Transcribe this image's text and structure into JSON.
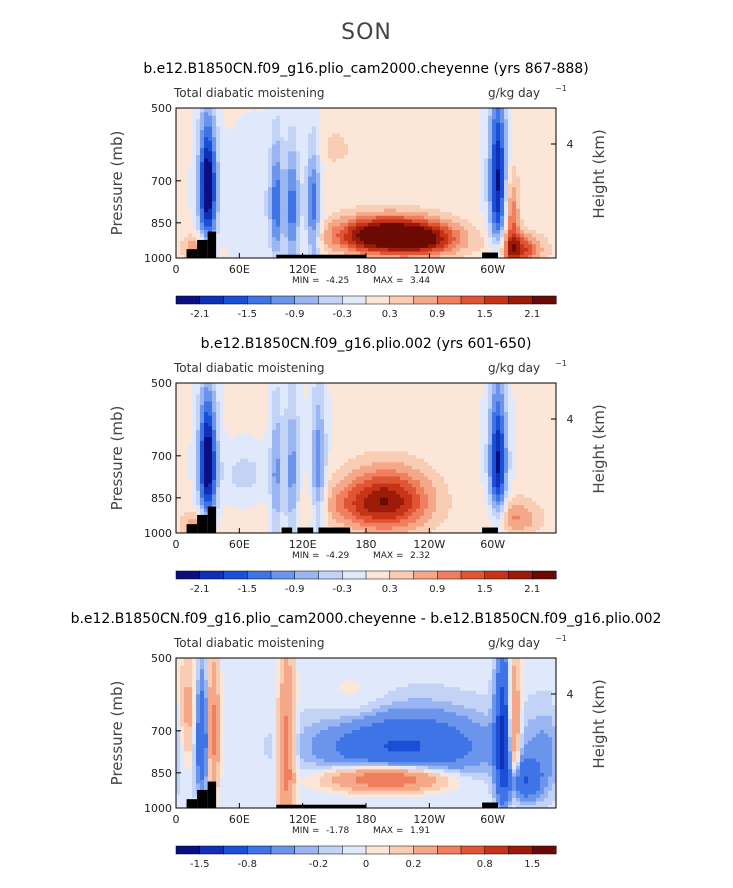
{
  "figure": {
    "suptitle": "SON"
  },
  "chart_data": [
    {
      "type": "heatmap",
      "title": "b.e12.B1850CN.f09_g16.plio_cam2000.cheyenne (yrs 867-888)",
      "left_label": "Total diabatic moistening",
      "units": "g/kg day",
      "units_exp": "−1",
      "ylabel": "Pressure (mb)",
      "ylabel_right": "Height (km)",
      "right_ticks": [
        "4"
      ],
      "yticks": [
        "500",
        "700",
        "850",
        "1000"
      ],
      "xticks": [
        "0",
        "60E",
        "120E",
        "180",
        "120W",
        "60W"
      ],
      "xlim": [
        0,
        360
      ],
      "ylim": [
        1000,
        500
      ],
      "min_label": "MIN =",
      "min_value": "-4.25",
      "max_label": "MAX =",
      "max_value": "3.44",
      "colorbar_ticks": [
        "-2.1",
        "-1.5",
        "-0.9",
        "-0.3",
        "0.3",
        "0.9",
        "1.5",
        "2.1"
      ],
      "levels": [
        -2.4,
        -2.1,
        -1.8,
        -1.5,
        -1.2,
        -0.9,
        -0.6,
        -0.3,
        0,
        0.3,
        0.6,
        0.9,
        1.2,
        1.5,
        1.8,
        2.1,
        2.4
      ],
      "features": [
        {
          "lon": 30,
          "p": 720,
          "wlon": 6,
          "wp": 150,
          "amp": -2.6
        },
        {
          "lon": 95,
          "p": 780,
          "wlon": 4,
          "wp": 160,
          "amp": -1.3
        },
        {
          "lon": 110,
          "p": 800,
          "wlon": 5,
          "wp": 160,
          "amp": -1.4
        },
        {
          "lon": 130,
          "p": 800,
          "wlon": 5,
          "wp": 170,
          "amp": -1.5
        },
        {
          "lon": 75,
          "p": 780,
          "wlon": 20,
          "wp": 140,
          "amp": -0.35
        },
        {
          "lon": 200,
          "p": 900,
          "wlon": 35,
          "wp": 55,
          "amp": 2.8
        },
        {
          "lon": 240,
          "p": 920,
          "wlon": 25,
          "wp": 50,
          "amp": 1.0
        },
        {
          "lon": 305,
          "p": 700,
          "wlon": 6,
          "wp": 200,
          "amp": -2.2
        },
        {
          "lon": 318,
          "p": 840,
          "wlon": 5,
          "wp": 120,
          "amp": 1.2
        },
        {
          "lon": 325,
          "p": 960,
          "wlon": 15,
          "wp": 50,
          "amp": 1.6
        },
        {
          "lon": 150,
          "p": 600,
          "wlon": 20,
          "wp": 60,
          "amp": 0.3
        },
        {
          "lon": 20,
          "p": 950,
          "wlon": 10,
          "wp": 40,
          "amp": 0.9
        }
      ],
      "topography": [
        {
          "lon0": 10,
          "lon1": 20,
          "p": 960
        },
        {
          "lon0": 20,
          "lon1": 30,
          "p": 920
        },
        {
          "lon0": 30,
          "lon1": 38,
          "p": 885
        },
        {
          "lon0": 95,
          "lon1": 180,
          "p": 985
        },
        {
          "lon0": 290,
          "lon1": 305,
          "p": 975
        }
      ]
    },
    {
      "type": "heatmap",
      "title": "b.e12.B1850CN.f09_g16.plio.002 (yrs 601-650)",
      "left_label": "Total diabatic moistening",
      "units": "g/kg day",
      "units_exp": "−1",
      "ylabel": "Pressure (mb)",
      "ylabel_right": "Height (km)",
      "right_ticks": [
        "4"
      ],
      "yticks": [
        "500",
        "700",
        "850",
        "1000"
      ],
      "xticks": [
        "0",
        "60E",
        "120E",
        "180",
        "120W",
        "60W"
      ],
      "xlim": [
        0,
        360
      ],
      "ylim": [
        1000,
        500
      ],
      "min_label": "MIN =",
      "min_value": "-4.29",
      "max_label": "MAX =",
      "max_value": "2.32",
      "colorbar_ticks": [
        "-2.1",
        "-1.5",
        "-0.9",
        "-0.3",
        "0.3",
        "0.9",
        "1.5",
        "2.1"
      ],
      "levels": [
        -2.4,
        -2.1,
        -1.8,
        -1.5,
        -1.2,
        -0.9,
        -0.6,
        -0.3,
        0,
        0.3,
        0.6,
        0.9,
        1.2,
        1.5,
        1.8,
        2.1,
        2.4
      ],
      "features": [
        {
          "lon": 30,
          "p": 720,
          "wlon": 6,
          "wp": 150,
          "amp": -2.6
        },
        {
          "lon": 95,
          "p": 760,
          "wlon": 4,
          "wp": 180,
          "amp": -1.0
        },
        {
          "lon": 110,
          "p": 760,
          "wlon": 5,
          "wp": 180,
          "amp": -1.1
        },
        {
          "lon": 135,
          "p": 760,
          "wlon": 5,
          "wp": 180,
          "amp": -1.3
        },
        {
          "lon": 65,
          "p": 760,
          "wlon": 15,
          "wp": 60,
          "amp": -0.5
        },
        {
          "lon": 200,
          "p": 860,
          "wlon": 30,
          "wp": 90,
          "amp": 1.9
        },
        {
          "lon": 305,
          "p": 720,
          "wlon": 6,
          "wp": 170,
          "amp": -2.2
        },
        {
          "lon": 320,
          "p": 930,
          "wlon": 18,
          "wp": 60,
          "amp": 0.9
        },
        {
          "lon": 20,
          "p": 960,
          "wlon": 10,
          "wp": 40,
          "amp": 0.9
        },
        {
          "lon": 160,
          "p": 880,
          "wlon": 30,
          "wp": 60,
          "amp": 0.4
        }
      ],
      "topography": [
        {
          "lon0": 10,
          "lon1": 20,
          "p": 960
        },
        {
          "lon0": 20,
          "lon1": 30,
          "p": 920
        },
        {
          "lon0": 30,
          "lon1": 38,
          "p": 885
        },
        {
          "lon0": 100,
          "lon1": 110,
          "p": 975
        },
        {
          "lon0": 115,
          "lon1": 130,
          "p": 975
        },
        {
          "lon0": 135,
          "lon1": 165,
          "p": 975
        },
        {
          "lon0": 290,
          "lon1": 305,
          "p": 975
        }
      ]
    },
    {
      "type": "heatmap",
      "title": "b.e12.B1850CN.f09_g16.plio_cam2000.cheyenne - b.e12.B1850CN.f09_g16.plio.002",
      "left_label": "Total diabatic moistening",
      "units": "g/kg day",
      "units_exp": "−1",
      "ylabel": "Pressure (mb)",
      "ylabel_right": "Height (km)",
      "right_ticks": [
        "4"
      ],
      "yticks": [
        "500",
        "700",
        "850",
        "1000"
      ],
      "xticks": [
        "0",
        "60E",
        "120E",
        "180",
        "120W",
        "60W"
      ],
      "xlim": [
        0,
        360
      ],
      "ylim": [
        1000,
        500
      ],
      "min_label": "MIN =",
      "min_value": "-1.78",
      "max_label": "MAX =",
      "max_value": "1.91",
      "colorbar_ticks": [
        "-1.5",
        "-0.8",
        "-0.2",
        "0",
        "0.2",
        "0.8",
        "1.5"
      ],
      "levels": [
        -2.0,
        -1.5,
        -1.2,
        -0.8,
        -0.4,
        -0.2,
        -0.1,
        0,
        0.1,
        0.2,
        0.4,
        0.8,
        1.2,
        1.5,
        2.0
      ],
      "features": [
        {
          "lon": 25,
          "p": 720,
          "wlon": 5,
          "wp": 130,
          "amp": -0.9
        },
        {
          "lon": 35,
          "p": 700,
          "wlon": 4,
          "wp": 140,
          "amp": 1.0
        },
        {
          "lon": 12,
          "p": 650,
          "wlon": 6,
          "wp": 120,
          "amp": 0.5
        },
        {
          "lon": 105,
          "p": 780,
          "wlon": 5,
          "wp": 200,
          "amp": 1.0
        },
        {
          "lon": 215,
          "p": 750,
          "wlon": 55,
          "wp": 80,
          "amp": -0.9
        },
        {
          "lon": 200,
          "p": 870,
          "wlon": 35,
          "wp": 35,
          "amp": 1.4
        },
        {
          "lon": 310,
          "p": 720,
          "wlon": 5,
          "wp": 170,
          "amp": -1.3
        },
        {
          "lon": 320,
          "p": 700,
          "wlon": 4,
          "wp": 150,
          "amp": 0.9
        },
        {
          "lon": 330,
          "p": 880,
          "wlon": 12,
          "wp": 60,
          "amp": -0.8
        },
        {
          "lon": 170,
          "p": 620,
          "wlon": 25,
          "wp": 60,
          "amp": 0.15
        },
        {
          "lon": 350,
          "p": 760,
          "wlon": 15,
          "wp": 100,
          "amp": -0.25
        }
      ],
      "topography": [
        {
          "lon0": 10,
          "lon1": 20,
          "p": 960
        },
        {
          "lon0": 20,
          "lon1": 30,
          "p": 920
        },
        {
          "lon0": 30,
          "lon1": 38,
          "p": 885
        },
        {
          "lon0": 95,
          "lon1": 180,
          "p": 985
        },
        {
          "lon0": 290,
          "lon1": 305,
          "p": 975
        }
      ]
    }
  ],
  "colors": {
    "palette": [
      "#0a0f80",
      "#1030b8",
      "#1a4fd8",
      "#3f74e6",
      "#6b95ec",
      "#99b6f2",
      "#c3d3f6",
      "#e0e9fb",
      "#fbe6d8",
      "#f8cdb4",
      "#f5a888",
      "#ef7f5d",
      "#e05535",
      "#c63418",
      "#9b1a08",
      "#6b0a02"
    ],
    "topography": "#000000",
    "frame": "#000000"
  }
}
